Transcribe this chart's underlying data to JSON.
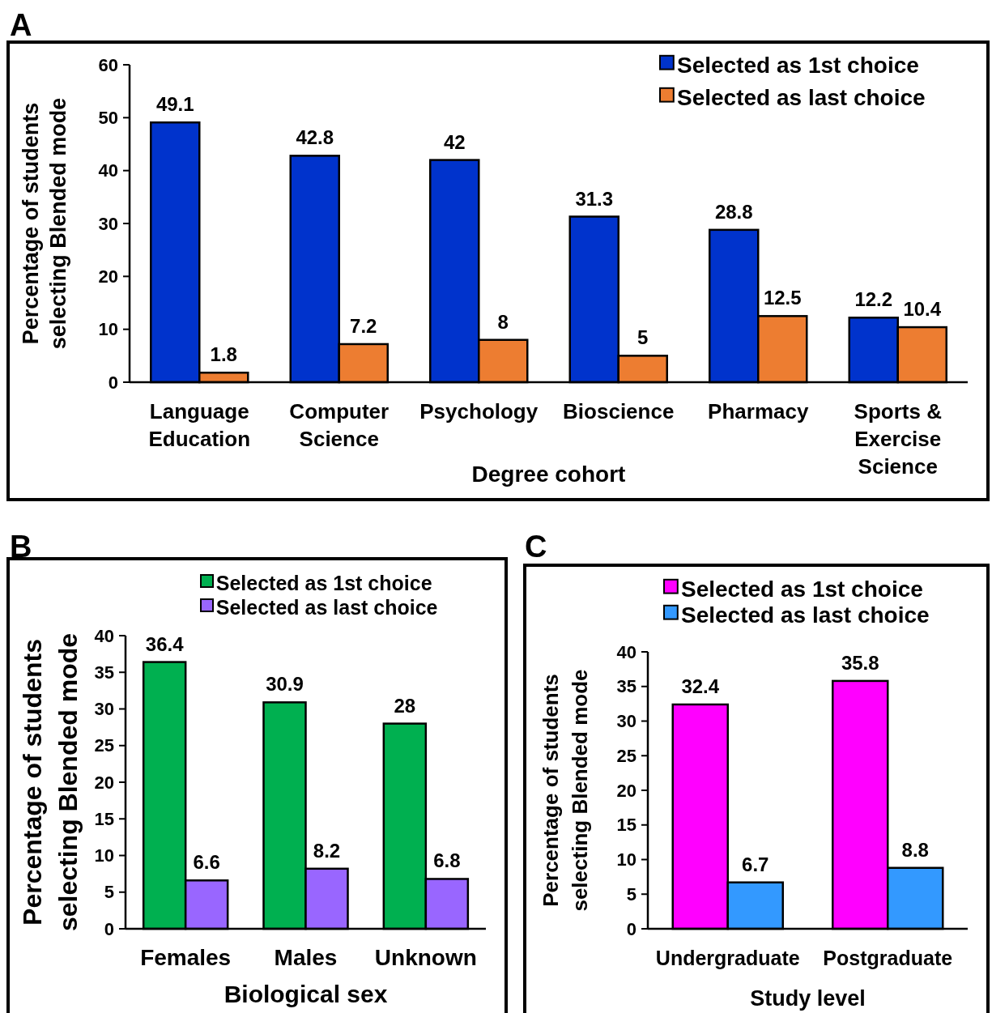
{
  "chart_data": [
    {
      "type": "bar",
      "title": "A",
      "xlabel": "Degree cohort",
      "ylabel": "Percentage of students\nselecting Blended mode",
      "categories": [
        "Language\nEducation",
        "Computer\nScience",
        "Psychology",
        "Bioscience",
        "Pharmacy",
        "Sports &\nExercise\nScience"
      ],
      "ylim": [
        0,
        60
      ],
      "yticks": [
        0,
        10,
        20,
        30,
        40,
        50,
        60
      ],
      "legend": "top right",
      "data_labels": true,
      "series": [
        {
          "name": "Selected as 1st choice",
          "color": "#0033cc",
          "values": [
            49.1,
            42.8,
            42,
            31.3,
            28.8,
            12.2
          ]
        },
        {
          "name": "Selected as last choice",
          "color": "#ed7d31",
          "values": [
            1.8,
            7.2,
            8,
            5,
            12.5,
            10.4
          ]
        }
      ]
    },
    {
      "type": "bar",
      "title": "B",
      "xlabel": "Biological sex",
      "ylabel": "Percentage of students\nselecting Blended mode",
      "categories": [
        "Females",
        "Males",
        "Unknown"
      ],
      "ylim": [
        0,
        40
      ],
      "yticks": [
        0,
        5,
        10,
        15,
        20,
        25,
        30,
        35,
        40
      ],
      "legend": "top right",
      "data_labels": true,
      "series": [
        {
          "name": "Selected as 1st choice",
          "color": "#00b050",
          "values": [
            36.4,
            30.9,
            28
          ]
        },
        {
          "name": "Selected as last choice",
          "color": "#9966ff",
          "values": [
            6.6,
            8.2,
            6.8
          ]
        }
      ]
    },
    {
      "type": "bar",
      "title": "C",
      "xlabel": "Study level",
      "ylabel": "Percentage of students\nselecting Blended mode",
      "categories": [
        "Undergraduate",
        "Postgraduate"
      ],
      "ylim": [
        0,
        40
      ],
      "yticks": [
        0,
        5,
        10,
        15,
        20,
        25,
        30,
        35,
        40
      ],
      "legend": "top right",
      "data_labels": true,
      "series": [
        {
          "name": "Selected as 1st choice",
          "color": "#ff00ff",
          "values": [
            32.4,
            35.8
          ]
        },
        {
          "name": "Selected as last choice",
          "color": "#3399ff",
          "values": [
            6.7,
            8.8
          ]
        }
      ]
    }
  ]
}
